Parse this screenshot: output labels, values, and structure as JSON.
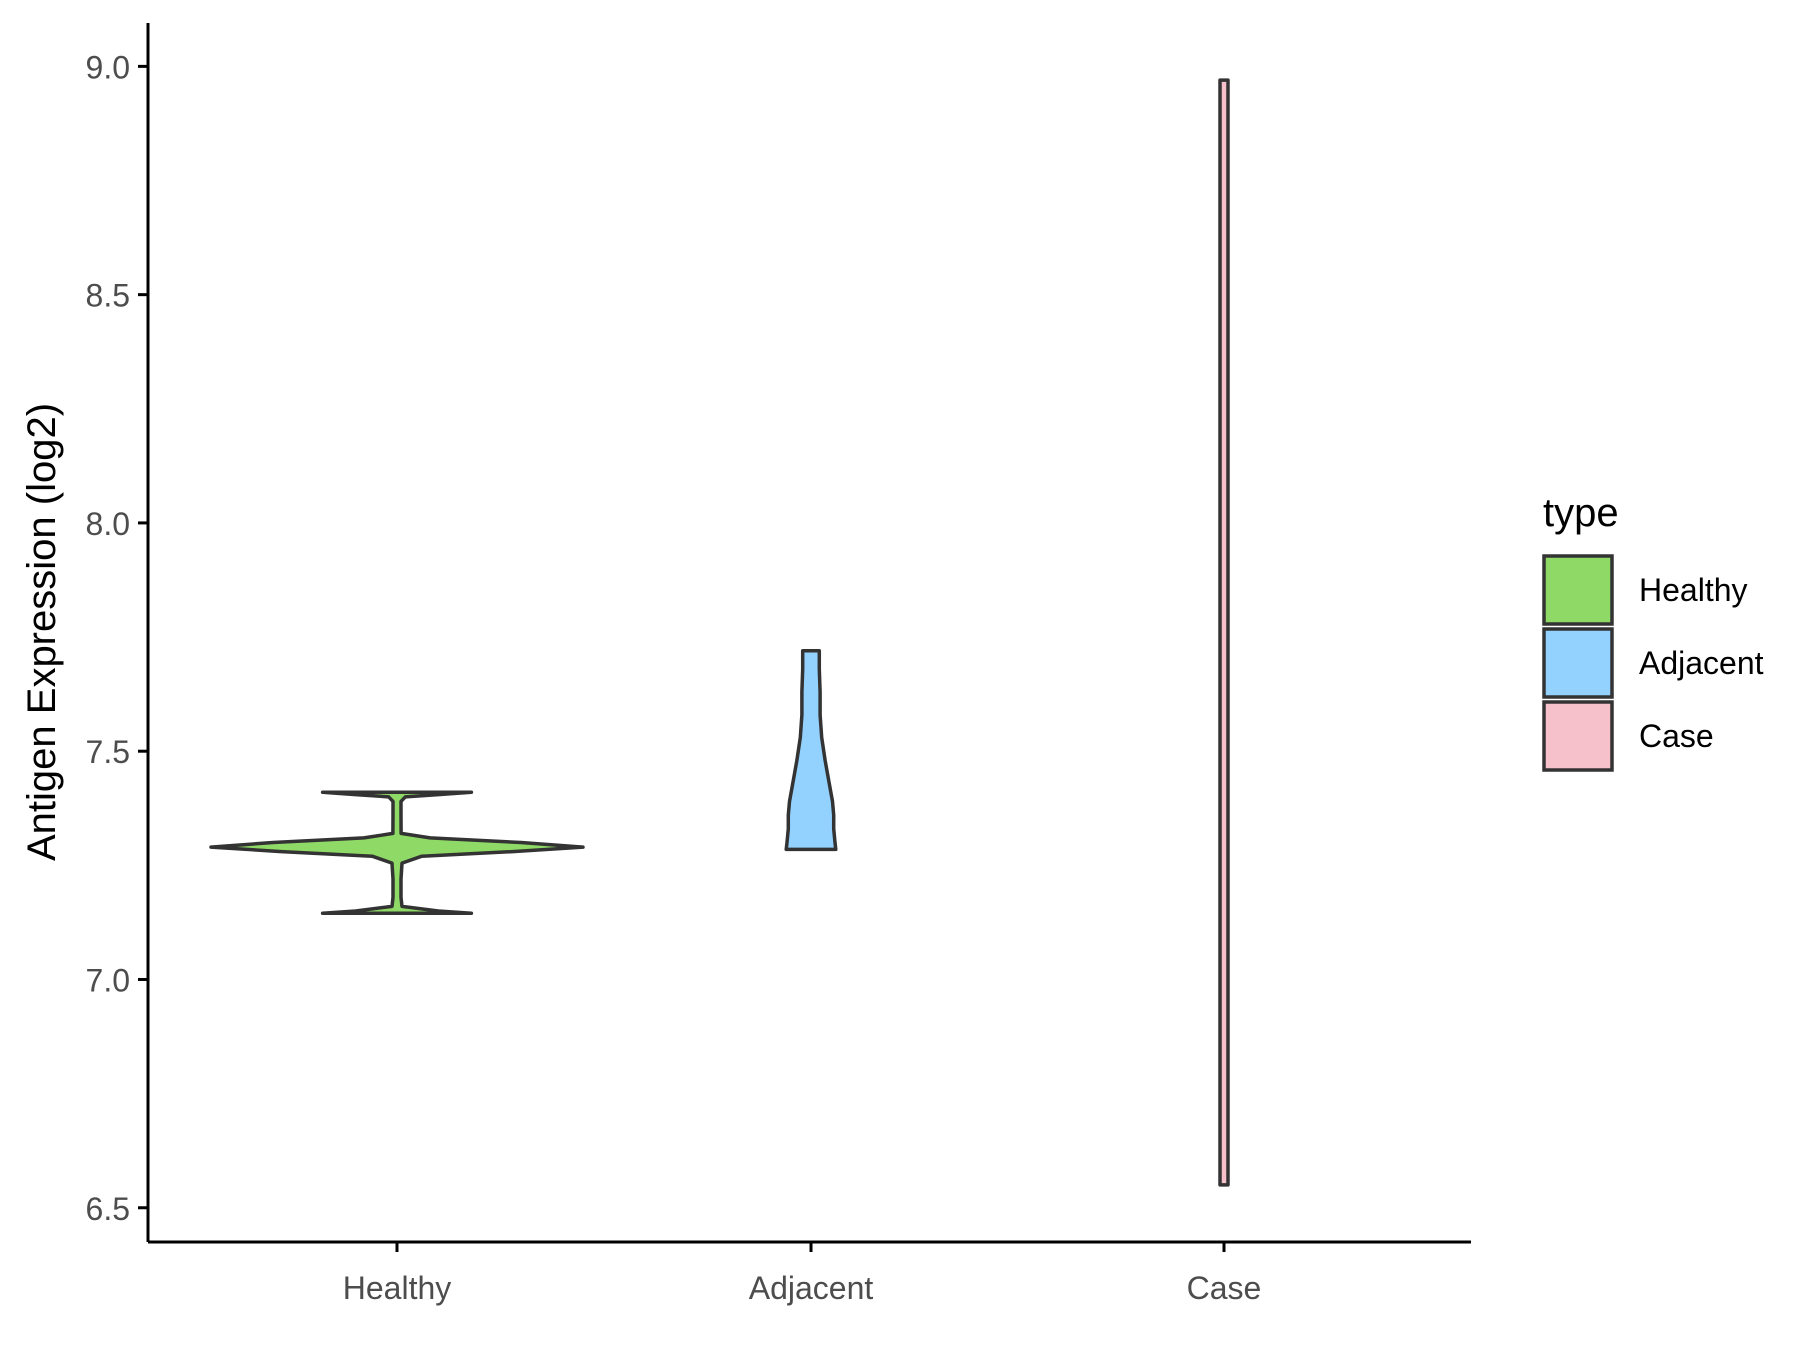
{
  "chart_data": {
    "type": "violin",
    "xlabel": "",
    "ylabel": "Antigen Expression (log2)",
    "ylim": [
      6.425,
      9.095
    ],
    "yticks": [
      6.5,
      7.0,
      7.5,
      8.0,
      8.5,
      9.0
    ],
    "ytick_labels": [
      "6.5",
      "7.0",
      "7.5",
      "8.0",
      "8.5",
      "9.0"
    ],
    "categories": [
      "Healthy",
      "Adjacent",
      "Case"
    ],
    "grid": false,
    "legend": {
      "title": "type",
      "placement": "right",
      "entries": [
        "Healthy",
        "Adjacent",
        "Case"
      ]
    },
    "colors": {
      "Healthy": "#8FD966",
      "Adjacent": "#93D2FF",
      "Case": "#F7C1CB",
      "outline": "#333333"
    },
    "series": [
      {
        "category": "Healthy",
        "min": 7.145,
        "max": 7.41,
        "density": [
          [
            7.145,
            0.18
          ],
          [
            7.15,
            0.1
          ],
          [
            7.16,
            0.012
          ],
          [
            7.18,
            0.006
          ],
          [
            7.22,
            0.006
          ],
          [
            7.255,
            0.012
          ],
          [
            7.27,
            0.06
          ],
          [
            7.28,
            0.28
          ],
          [
            7.29,
            0.45
          ],
          [
            7.3,
            0.3
          ],
          [
            7.31,
            0.08
          ],
          [
            7.32,
            0.01
          ],
          [
            7.36,
            0.006
          ],
          [
            7.39,
            0.006
          ],
          [
            7.4,
            0.02
          ],
          [
            7.405,
            0.1
          ],
          [
            7.41,
            0.18
          ]
        ]
      },
      {
        "category": "Adjacent",
        "min": 7.285,
        "max": 7.72,
        "density": [
          [
            7.285,
            0.06
          ],
          [
            7.3,
            0.058
          ],
          [
            7.33,
            0.055
          ],
          [
            7.36,
            0.055
          ],
          [
            7.39,
            0.052
          ],
          [
            7.43,
            0.044
          ],
          [
            7.48,
            0.034
          ],
          [
            7.53,
            0.026
          ],
          [
            7.58,
            0.022
          ],
          [
            7.63,
            0.022
          ],
          [
            7.68,
            0.02
          ],
          [
            7.72,
            0.02
          ]
        ]
      },
      {
        "category": "Case",
        "min": 6.55,
        "max": 8.97,
        "density": [
          [
            6.55,
            0.001
          ],
          [
            6.7,
            0.002
          ],
          [
            6.9,
            0.003
          ],
          [
            7.05,
            0.0035
          ],
          [
            7.2,
            0.005
          ],
          [
            7.35,
            0.0065
          ],
          [
            7.45,
            0.0065
          ],
          [
            7.55,
            0.005
          ],
          [
            7.7,
            0.0045
          ],
          [
            7.9,
            0.004
          ],
          [
            8.1,
            0.003
          ],
          [
            8.3,
            0.002
          ],
          [
            8.5,
            0.0012
          ],
          [
            8.7,
            0.0006
          ],
          [
            8.97,
            0.0003
          ]
        ]
      }
    ]
  }
}
